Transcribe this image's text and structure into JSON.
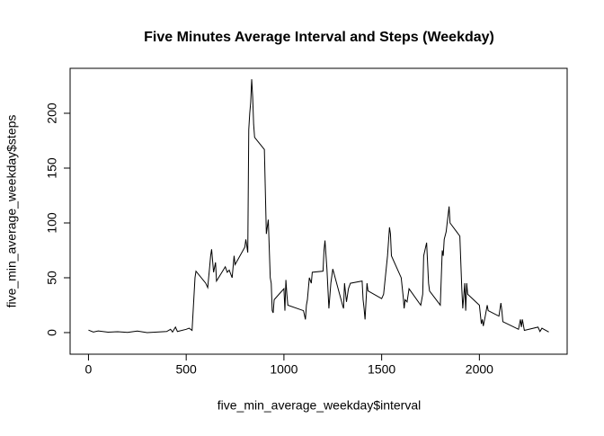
{
  "chart_data": {
    "type": "line",
    "title": "Five Minutes Average Interval and Steps (Weekday)",
    "x_label": "five_min_average_weekday$interval",
    "y_label": "five_min_average_weekday$steps",
    "color": "#000000",
    "x": [
      0,
      25,
      50,
      100,
      150,
      200,
      250,
      300,
      350,
      400,
      420,
      430,
      445,
      455,
      500,
      515,
      530,
      545,
      550,
      600,
      610,
      620,
      625,
      630,
      640,
      650,
      655,
      700,
      710,
      720,
      735,
      745,
      750,
      800,
      805,
      815,
      820,
      825,
      830,
      835,
      840,
      845,
      850,
      900,
      910,
      920,
      930,
      935,
      940,
      945,
      950,
      1000,
      1005,
      1010,
      1015,
      1020,
      1100,
      1110,
      1115,
      1120,
      1130,
      1140,
      1145,
      1200,
      1205,
      1210,
      1220,
      1230,
      1240,
      1250,
      1300,
      1305,
      1310,
      1320,
      1330,
      1340,
      1400,
      1405,
      1410,
      1415,
      1425,
      1430,
      1500,
      1510,
      1530,
      1540,
      1545,
      1550,
      1600,
      1610,
      1615,
      1620,
      1630,
      1640,
      1700,
      1710,
      1715,
      1730,
      1740,
      1745,
      1800,
      1810,
      1815,
      1820,
      1830,
      1845,
      1850,
      1900,
      1910,
      1915,
      1925,
      1930,
      1935,
      1940,
      2000,
      2010,
      2015,
      2020,
      2030,
      2040,
      2045,
      2100,
      2110,
      2115,
      2120,
      2200,
      2210,
      2215,
      2220,
      2230,
      2300,
      2310,
      2320,
      2330,
      2355
    ],
    "values": [
      2.3,
      0.5,
      1.5,
      0.4,
      0.8,
      0.2,
      1.4,
      0,
      0.5,
      1,
      3,
      0.5,
      5,
      1,
      3,
      4,
      2,
      50,
      56,
      45,
      41,
      60,
      70,
      76,
      55,
      64,
      47,
      60,
      55,
      57,
      50,
      70,
      62,
      78,
      85,
      73,
      185,
      200,
      210,
      231,
      215,
      190,
      178,
      167,
      90,
      103,
      50,
      45,
      20,
      18,
      30,
      40,
      20,
      48,
      35,
      25,
      20,
      12,
      25,
      30,
      50,
      45,
      55,
      56,
      75,
      84,
      58,
      22,
      45,
      58,
      25,
      22,
      45,
      28,
      40,
      45,
      47,
      30,
      22,
      12,
      45,
      38,
      31,
      35,
      70,
      96,
      90,
      70,
      50,
      33,
      22,
      30,
      28,
      40,
      25,
      35,
      70,
      82,
      45,
      38,
      25,
      75,
      70,
      85,
      92,
      115,
      100,
      88,
      40,
      22,
      45,
      20,
      45,
      35,
      25,
      8,
      12,
      6,
      15,
      25,
      20,
      15,
      27,
      20,
      10,
      3,
      12,
      5,
      12,
      2,
      5,
      1,
      4,
      3,
      0.5
    ],
    "xlim": [
      -94,
      2449
    ],
    "ylim": [
      -19.7,
      241
    ],
    "xticks": [
      0,
      500,
      1000,
      1500,
      2000
    ],
    "yticks": [
      0,
      50,
      100,
      150,
      200
    ]
  }
}
